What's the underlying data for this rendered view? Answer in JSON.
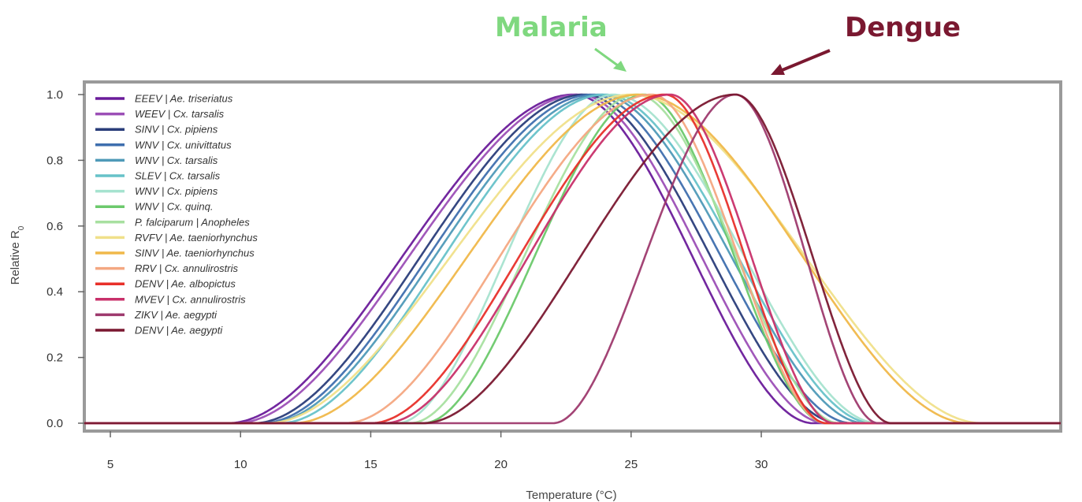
{
  "chart_data": {
    "type": "line",
    "xlabel": "Temperature (°C)",
    "ylabel": "Relative R",
    "ylabel_subscript": "0",
    "xlim": [
      4,
      41.5
    ],
    "ylim": [
      0,
      1.0
    ],
    "x_ticks": [
      5,
      10,
      15,
      20,
      25,
      30
    ],
    "y_ticks": [
      0.0,
      0.2,
      0.4,
      0.6,
      0.8,
      1.0
    ],
    "x_tick_labels": [
      "5",
      "10",
      "15",
      "20",
      "25",
      "30"
    ],
    "y_tick_labels": [
      "0.0",
      "0.2",
      "0.4",
      "0.6",
      "0.8",
      "1.0"
    ],
    "legend_position": "top-left",
    "grid": false,
    "annotations": [
      {
        "text": "Malaria",
        "color": "#7fd87f",
        "points_to_x": 25.4
      },
      {
        "text": "Dengue",
        "color": "#7a1830",
        "points_to_x": 30.2
      }
    ],
    "series": [
      {
        "name": "EEEV | Ae. triseriatus",
        "color": "#6a1b9a",
        "values": {
          "xmin": 9.5,
          "xpeak": 22.8,
          "xmax": 32.0
        }
      },
      {
        "name": "WEEV | Cx. tarsalis",
        "color": "#9c4fb6",
        "values": {
          "xmin": 9.8,
          "xpeak": 23.0,
          "xmax": 32.5
        }
      },
      {
        "name": "SINV | Cx. pipiens",
        "color": "#2a3d7a",
        "values": {
          "xmin": 10.5,
          "xpeak": 23.2,
          "xmax": 33.0
        }
      },
      {
        "name": "WNV | Cx. univittatus",
        "color": "#3f6fae",
        "values": {
          "xmin": 10.8,
          "xpeak": 23.5,
          "xmax": 33.5
        }
      },
      {
        "name": "WNV | Cx. tarsalis",
        "color": "#4f9ab8",
        "values": {
          "xmin": 11.0,
          "xpeak": 23.8,
          "xmax": 34.0
        }
      },
      {
        "name": "SLEV | Cx. tarsalis",
        "color": "#67c2c9",
        "values": {
          "xmin": 11.5,
          "xpeak": 24.0,
          "xmax": 34.3
        }
      },
      {
        "name": "WNV | Cx. pipiens",
        "color": "#a6e3cf",
        "values": {
          "xmin": 16.0,
          "xpeak": 24.3,
          "xmax": 34.5
        }
      },
      {
        "name": "WNV | Cx. quinq.",
        "color": "#6cc96c",
        "values": {
          "xmin": 17.0,
          "xpeak": 25.5,
          "xmax": 32.5
        }
      },
      {
        "name": "P. falciparum | Anopheles",
        "color": "#a8e0a0",
        "values": {
          "xmin": 16.5,
          "xpeak": 25.2,
          "xmax": 33.0
        }
      },
      {
        "name": "RVFV | Ae. taeniorhynchus",
        "color": "#f0e08a",
        "values": {
          "xmin": 11.0,
          "xpeak": 25.0,
          "xmax": 38.5
        }
      },
      {
        "name": "SINV | Ae. taeniorhynchus",
        "color": "#f0b84a",
        "values": {
          "xmin": 12.0,
          "xpeak": 25.3,
          "xmax": 38.0
        }
      },
      {
        "name": "RRV | Cx. annulirostris",
        "color": "#f4a882",
        "values": {
          "xmin": 14.0,
          "xpeak": 25.8,
          "xmax": 32.5
        }
      },
      {
        "name": "DENV | Ae. albopictus",
        "color": "#e8302a",
        "values": {
          "xmin": 15.0,
          "xpeak": 26.3,
          "xmax": 32.5
        }
      },
      {
        "name": "MVEV | Cx. annulirostris",
        "color": "#c8306a",
        "values": {
          "xmin": 15.5,
          "xpeak": 26.5,
          "xmax": 32.8
        }
      },
      {
        "name": "ZIKV | Ae. aegypti",
        "color": "#9e3a6e",
        "values": {
          "xmin": 22.0,
          "xpeak": 29.0,
          "xmax": 34.5
        }
      },
      {
        "name": "DENV | Ae. aegypti",
        "color": "#7a1830",
        "values": {
          "xmin": 17.0,
          "xpeak": 29.0,
          "xmax": 35.0
        }
      }
    ]
  }
}
